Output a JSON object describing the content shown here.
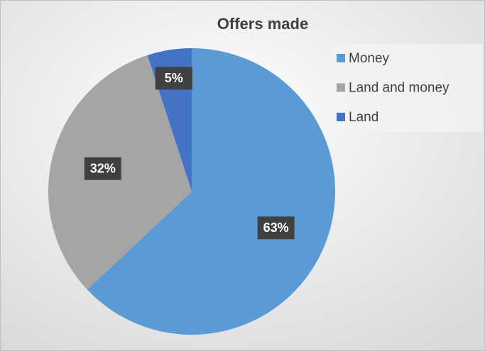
{
  "chart_data": {
    "type": "pie",
    "title": "Offers made",
    "categories": [
      "Money",
      "Land and money",
      "Land"
    ],
    "values": [
      63,
      32,
      5
    ],
    "value_labels": [
      "63%",
      "32%",
      "5%"
    ],
    "colors": [
      "#5b9bd5",
      "#a5a5a5",
      "#4472c4"
    ],
    "legend": "right"
  }
}
